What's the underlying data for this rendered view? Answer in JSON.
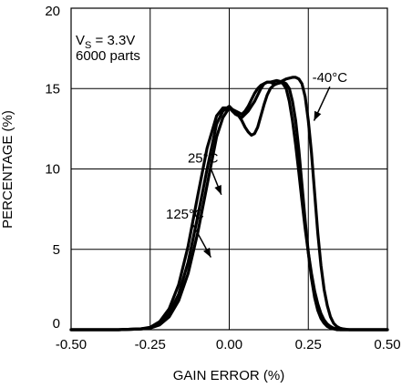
{
  "chart_data": {
    "type": "line",
    "title": "",
    "xlabel": "GAIN ERROR (%)",
    "ylabel": "PERCENTAGE (%)",
    "xlim": [
      -0.5,
      0.5
    ],
    "ylim": [
      0,
      20
    ],
    "x_ticks": [
      -0.5,
      -0.25,
      0,
      0.25,
      0.5
    ],
    "x_tick_labels": [
      "-0.50",
      "-0.25",
      "0.00",
      "0.25",
      "0.50"
    ],
    "y_ticks": [
      0,
      5,
      10,
      15,
      20
    ],
    "y_tick_labels": [
      "0",
      "5",
      "10",
      "15",
      "20"
    ],
    "grid": true,
    "line_color": "#000000",
    "annotation": {
      "vs_prefix": "V",
      "vs_subscript": "S",
      "vs_value": " = 3.3V",
      "parts": "6000 parts"
    },
    "x": [
      -0.5,
      -0.35,
      -0.28,
      -0.25,
      -0.22,
      -0.19,
      -0.16,
      -0.13,
      -0.1,
      -0.07,
      -0.04,
      -0.02,
      0.0,
      0.01,
      0.02,
      0.03,
      0.04,
      0.05,
      0.06,
      0.07,
      0.08,
      0.09,
      0.1,
      0.11,
      0.12,
      0.13,
      0.14,
      0.15,
      0.16,
      0.17,
      0.18,
      0.19,
      0.2,
      0.21,
      0.22,
      0.23,
      0.24,
      0.25,
      0.26,
      0.27,
      0.28,
      0.29,
      0.3,
      0.31,
      0.32,
      0.33,
      0.34,
      0.35,
      0.36,
      0.38,
      0.4,
      0.5
    ],
    "series": [
      {
        "name": "-40°C",
        "values": [
          0,
          0,
          0.05,
          0.1,
          0.3,
          0.8,
          1.8,
          3.5,
          6.0,
          9.0,
          12.0,
          13.2,
          13.8,
          13.6,
          13.4,
          13.3,
          13.2,
          13.4,
          13.6,
          13.9,
          14.2,
          14.6,
          15.0,
          15.3,
          15.4,
          15.4,
          15.3,
          15.3,
          15.4,
          15.5,
          15.6,
          15.65,
          15.7,
          15.7,
          15.6,
          15.3,
          14.5,
          13.0,
          11.0,
          8.5,
          6.0,
          4.0,
          2.5,
          1.5,
          0.8,
          0.4,
          0.2,
          0.1,
          0.05,
          0,
          0,
          0
        ]
      },
      {
        "name": "25°C",
        "values": [
          0,
          0,
          0.05,
          0.1,
          0.4,
          1.0,
          2.2,
          4.2,
          7.0,
          10.0,
          12.8,
          13.6,
          13.9,
          13.7,
          13.5,
          13.3,
          13.0,
          12.6,
          12.3,
          12.1,
          12.2,
          12.6,
          13.3,
          14.0,
          14.6,
          15.0,
          15.2,
          15.3,
          15.35,
          15.4,
          15.3,
          15.0,
          14.2,
          13.0,
          11.2,
          9.0,
          6.8,
          4.8,
          3.2,
          2.0,
          1.2,
          0.7,
          0.4,
          0.2,
          0.1,
          0.05,
          0,
          0,
          0,
          0,
          0,
          0
        ]
      },
      {
        "name": "125°C",
        "values": [
          0,
          0,
          0.05,
          0.15,
          0.5,
          1.3,
          2.8,
          5.2,
          8.3,
          11.3,
          13.3,
          13.8,
          13.8,
          13.7,
          13.6,
          13.5,
          13.4,
          13.6,
          13.9,
          14.3,
          14.7,
          15.0,
          15.2,
          15.3,
          15.4,
          15.4,
          15.45,
          15.5,
          15.45,
          15.3,
          15.0,
          14.2,
          13.0,
          11.5,
          9.8,
          8.0,
          6.3,
          4.8,
          3.5,
          2.4,
          1.6,
          1.0,
          0.6,
          0.35,
          0.2,
          0.1,
          0.05,
          0,
          0,
          0,
          0,
          0
        ]
      }
    ],
    "series_labels": [
      {
        "text": "-40°C",
        "tx": 0.318,
        "ty": 15.4,
        "ax": 0.268,
        "ay": 13.0
      },
      {
        "text": "25°C",
        "tx": -0.083,
        "ty": 10.4,
        "ax": -0.025,
        "ay": 8.4
      },
      {
        "text": "125°C",
        "tx": -0.14,
        "ty": 6.9,
        "ax": -0.058,
        "ay": 4.5
      }
    ]
  }
}
